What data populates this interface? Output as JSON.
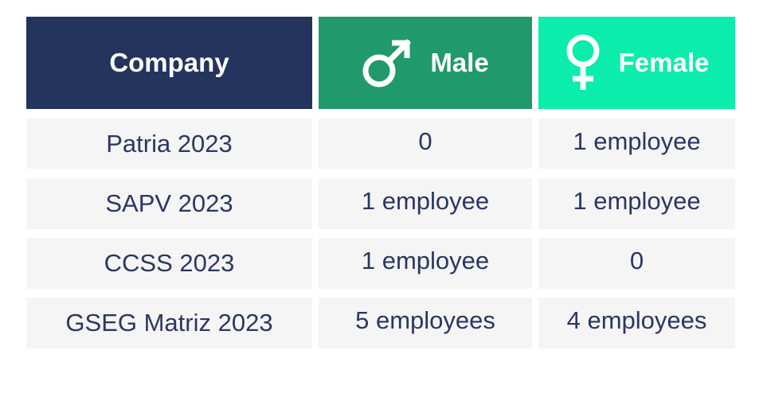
{
  "table": {
    "headers": {
      "company": "Company",
      "male": "Male",
      "female": "Female",
      "male_icon": "male-symbol-icon",
      "female_icon": "female-symbol-icon"
    },
    "rows": [
      {
        "company": "Patria 2023",
        "male": "0",
        "female": "1 employee"
      },
      {
        "company": "SAPV 2023",
        "male": "1 employee",
        "female": "1 employee"
      },
      {
        "company": "CCSS 2023",
        "male": "1 employee",
        "female": "0"
      },
      {
        "company": "GSEG Matriz 2023",
        "male": "5 employees",
        "female": "4 employees"
      }
    ]
  },
  "colors": {
    "company_header": "#24345f",
    "male_header": "#20996b",
    "female_header": "#0bedad",
    "row_background": "#f5f5f5",
    "text": "#2b3763"
  }
}
